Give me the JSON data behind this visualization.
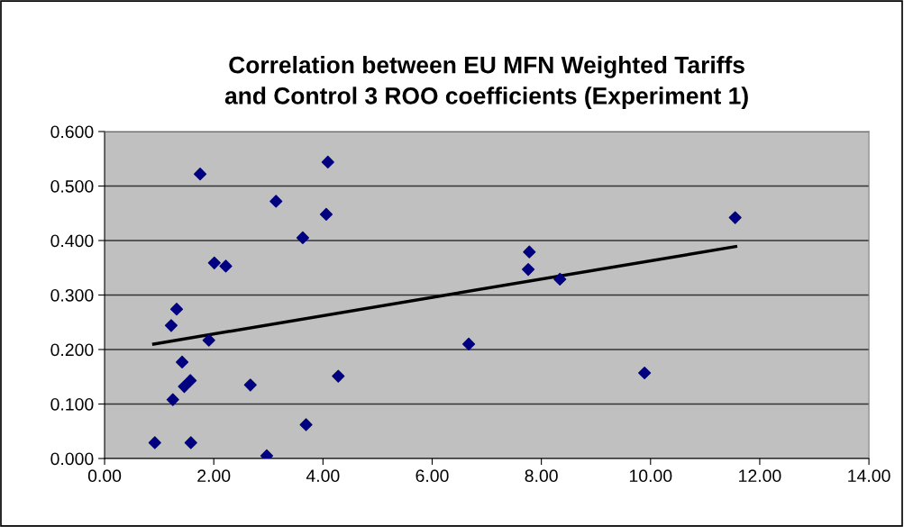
{
  "chart_data": {
    "type": "scatter",
    "title": "Correlation between EU MFN Weighted Tariffs\nand Control 3 ROO coefficients (Experiment 1)",
    "xlim": [
      0,
      14
    ],
    "xticks": [
      {
        "value": 0,
        "label": "0.00"
      },
      {
        "value": 2,
        "label": "2.00"
      },
      {
        "value": 4,
        "label": "4.00"
      },
      {
        "value": 6,
        "label": "6.00"
      },
      {
        "value": 8,
        "label": "8.00"
      },
      {
        "value": 10,
        "label": "10.00"
      },
      {
        "value": 12,
        "label": "12.00"
      },
      {
        "value": 14,
        "label": "14.00"
      }
    ],
    "ylim": [
      0,
      0.6
    ],
    "yticks": [
      {
        "value": 0,
        "label": "0.000"
      },
      {
        "value": 0.1,
        "label": "0.100"
      },
      {
        "value": 0.2,
        "label": "0.200"
      },
      {
        "value": 0.3,
        "label": "0.300"
      },
      {
        "value": 0.4,
        "label": "0.400"
      },
      {
        "value": 0.5,
        "label": "0.500"
      },
      {
        "value": 0.6,
        "label": "0.600"
      }
    ],
    "grid": "y",
    "legend": false,
    "series": [
      {
        "marker": "diamond",
        "color": "#000080",
        "x": [
          0.92,
          1.75,
          3.14,
          3.63,
          2.01,
          2.22,
          1.32,
          1.22,
          1.91,
          1.42,
          1.57,
          1.46,
          2.67,
          1.25,
          1.58,
          2.97,
          3.69,
          4.09,
          4.06,
          4.28,
          11.55,
          7.78,
          7.76,
          8.34,
          6.67,
          9.89
        ],
        "values": [
          0.029,
          0.522,
          0.472,
          0.405,
          0.359,
          0.353,
          0.274,
          0.244,
          0.217,
          0.177,
          0.143,
          0.132,
          0.135,
          0.108,
          0.029,
          0.005,
          0.062,
          0.544,
          0.448,
          0.151,
          0.442,
          0.379,
          0.347,
          0.329,
          0.21,
          0.157
        ]
      },
      {
        "type": "line",
        "marker": "none",
        "line_style": "solid",
        "color": "#000000",
        "x": [
          0.9,
          11.56
        ],
        "values": [
          0.21,
          0.389
        ]
      }
    ]
  }
}
